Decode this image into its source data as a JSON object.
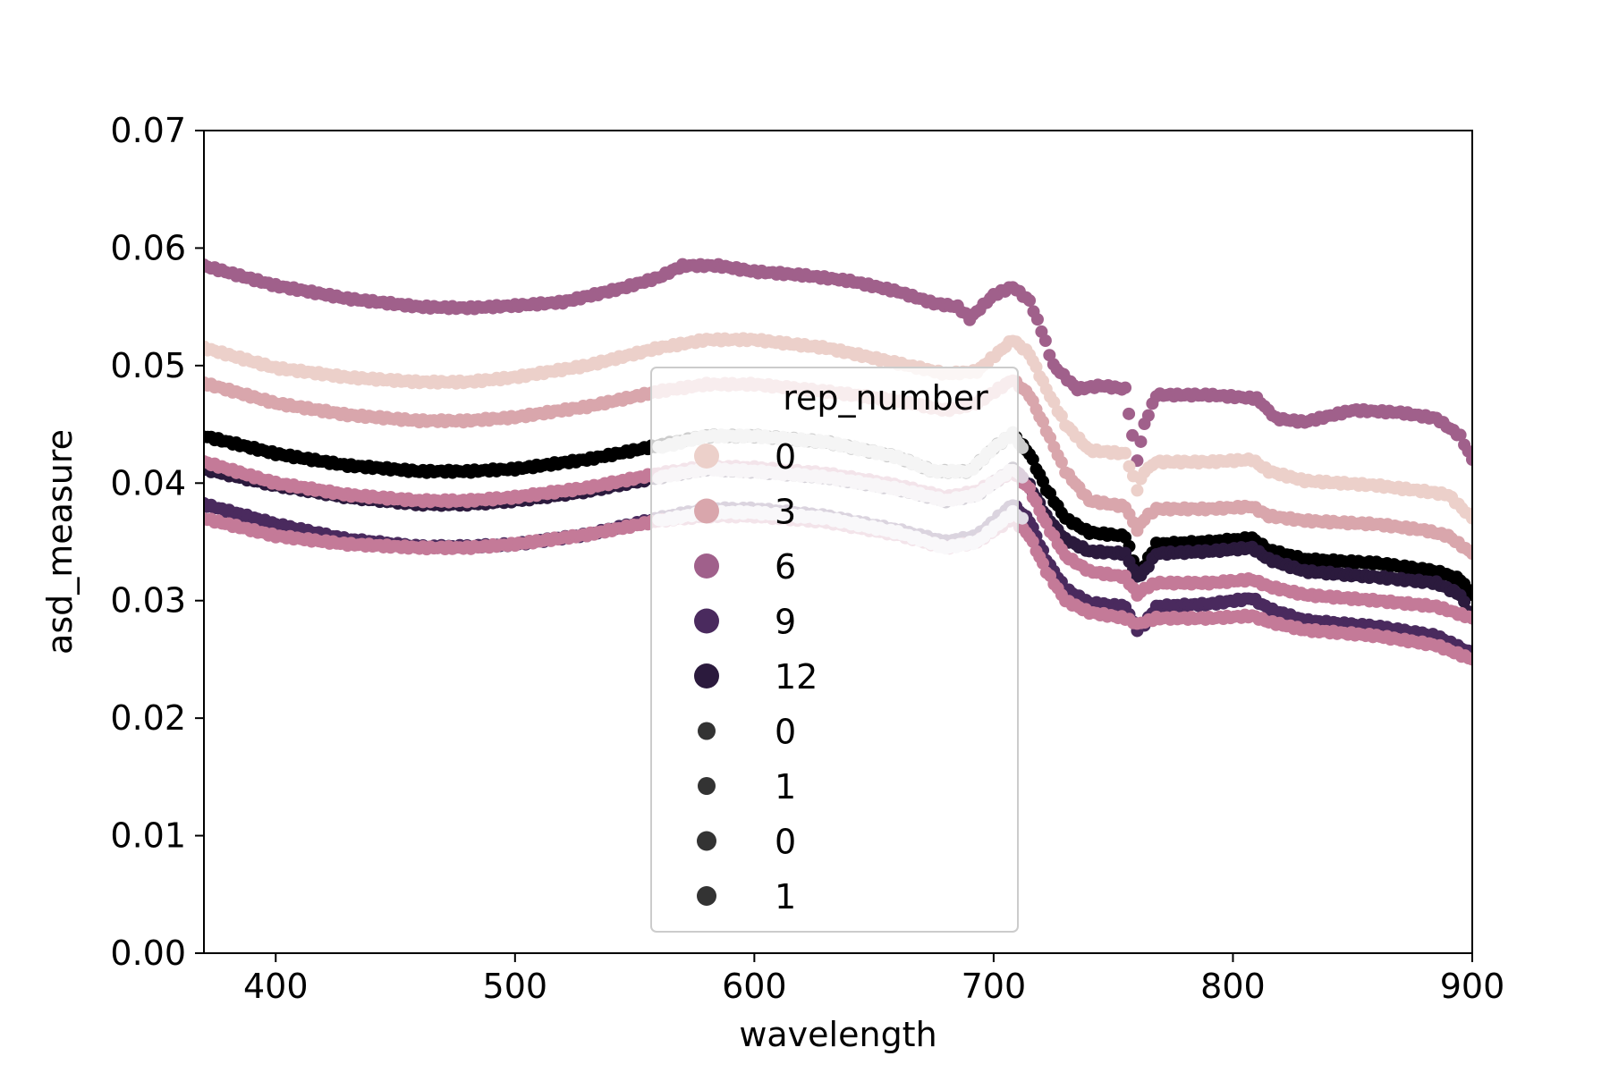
{
  "chart_data": {
    "type": "scatter",
    "xlabel": "wavelength",
    "ylabel": "asd_measure",
    "xlim": [
      370,
      900
    ],
    "ylim": [
      0,
      0.07
    ],
    "xticks": [
      400,
      500,
      600,
      700,
      800,
      900
    ],
    "xtick_labels": [
      "400",
      "500",
      "600",
      "700",
      "800",
      "900"
    ],
    "yticks": [
      0,
      0.01,
      0.02,
      0.03,
      0.04,
      0.05,
      0.06,
      0.07
    ],
    "ytick_labels": [
      "0.00",
      "0.01",
      "0.02",
      "0.03",
      "0.04",
      "0.05",
      "0.06",
      "0.07"
    ],
    "grid": false,
    "legend": {
      "placement": "center",
      "title": "rep_number",
      "entries": [
        {
          "label": "0",
          "color": "#ecd0ca",
          "kind": "hue"
        },
        {
          "label": "3",
          "color": "#d9a6ac",
          "kind": "hue"
        },
        {
          "label": "6",
          "color": "#a0608b",
          "kind": "hue"
        },
        {
          "label": "9",
          "color": "#4a2a5e",
          "kind": "hue"
        },
        {
          "label": "12",
          "color": "#2b1a3d",
          "kind": "hue"
        },
        {
          "label": "0",
          "color": "#333333",
          "kind": "size"
        },
        {
          "label": "1",
          "color": "#333333",
          "kind": "size"
        },
        {
          "label": "0",
          "color": "#333333",
          "kind": "size"
        },
        {
          "label": "1",
          "color": "#333333",
          "kind": "size"
        }
      ]
    },
    "series": [
      {
        "color": "#a0608b",
        "points": [
          [
            370,
            0.0585
          ],
          [
            400,
            0.0568
          ],
          [
            430,
            0.0557
          ],
          [
            460,
            0.055
          ],
          [
            480,
            0.0549
          ],
          [
            500,
            0.0551
          ],
          [
            520,
            0.0554
          ],
          [
            545,
            0.0566
          ],
          [
            560,
            0.0575
          ],
          [
            570,
            0.0585
          ],
          [
            585,
            0.0585
          ],
          [
            600,
            0.058
          ],
          [
            620,
            0.0577
          ],
          [
            640,
            0.0572
          ],
          [
            660,
            0.0563
          ],
          [
            675,
            0.0553
          ],
          [
            685,
            0.055
          ],
          [
            690,
            0.054
          ],
          [
            700,
            0.056
          ],
          [
            708,
            0.0567
          ],
          [
            715,
            0.0555
          ],
          [
            720,
            0.053
          ],
          [
            725,
            0.05
          ],
          [
            735,
            0.048
          ],
          [
            745,
            0.0483
          ],
          [
            755,
            0.048
          ],
          [
            758,
            0.044
          ],
          [
            760,
            0.042
          ],
          [
            763,
            0.045
          ],
          [
            768,
            0.0475
          ],
          [
            790,
            0.0475
          ],
          [
            810,
            0.0472
          ],
          [
            818,
            0.0455
          ],
          [
            830,
            0.0452
          ],
          [
            850,
            0.0462
          ],
          [
            870,
            0.046
          ],
          [
            885,
            0.0455
          ],
          [
            895,
            0.044
          ],
          [
            900,
            0.042
          ]
        ]
      },
      {
        "color": "#ecd0ca",
        "points": [
          [
            370,
            0.0515
          ],
          [
            400,
            0.0498
          ],
          [
            430,
            0.049
          ],
          [
            460,
            0.0486
          ],
          [
            480,
            0.0486
          ],
          [
            500,
            0.049
          ],
          [
            530,
            0.05
          ],
          [
            560,
            0.0515
          ],
          [
            580,
            0.0522
          ],
          [
            600,
            0.0522
          ],
          [
            630,
            0.0515
          ],
          [
            660,
            0.0502
          ],
          [
            680,
            0.0493
          ],
          [
            693,
            0.0495
          ],
          [
            708,
            0.0522
          ],
          [
            715,
            0.051
          ],
          [
            722,
            0.048
          ],
          [
            730,
            0.045
          ],
          [
            740,
            0.0428
          ],
          [
            755,
            0.0425
          ],
          [
            760,
            0.0395
          ],
          [
            763,
            0.041
          ],
          [
            768,
            0.0418
          ],
          [
            790,
            0.0418
          ],
          [
            808,
            0.042
          ],
          [
            815,
            0.041
          ],
          [
            830,
            0.0402
          ],
          [
            860,
            0.0398
          ],
          [
            880,
            0.0393
          ],
          [
            890,
            0.039
          ],
          [
            900,
            0.037
          ]
        ]
      },
      {
        "color": "#d9a6ac",
        "points": [
          [
            370,
            0.0485
          ],
          [
            400,
            0.0468
          ],
          [
            430,
            0.0458
          ],
          [
            460,
            0.0453
          ],
          [
            480,
            0.0453
          ],
          [
            500,
            0.0456
          ],
          [
            530,
            0.0465
          ],
          [
            560,
            0.0478
          ],
          [
            580,
            0.0484
          ],
          [
            600,
            0.0484
          ],
          [
            630,
            0.0478
          ],
          [
            660,
            0.047
          ],
          [
            680,
            0.0462
          ],
          [
            693,
            0.0468
          ],
          [
            708,
            0.0488
          ],
          [
            715,
            0.0475
          ],
          [
            722,
            0.0445
          ],
          [
            730,
            0.041
          ],
          [
            740,
            0.0385
          ],
          [
            755,
            0.038
          ],
          [
            760,
            0.036
          ],
          [
            763,
            0.037
          ],
          [
            768,
            0.0378
          ],
          [
            790,
            0.0378
          ],
          [
            808,
            0.038
          ],
          [
            815,
            0.0372
          ],
          [
            830,
            0.0368
          ],
          [
            860,
            0.0365
          ],
          [
            880,
            0.036
          ],
          [
            890,
            0.0355
          ],
          [
            900,
            0.034
          ]
        ]
      },
      {
        "color": "#000000",
        "points": [
          [
            370,
            0.044
          ],
          [
            400,
            0.0425
          ],
          [
            430,
            0.0415
          ],
          [
            460,
            0.041
          ],
          [
            480,
            0.041
          ],
          [
            500,
            0.0412
          ],
          [
            530,
            0.042
          ],
          [
            560,
            0.0432
          ],
          [
            580,
            0.044
          ],
          [
            600,
            0.044
          ],
          [
            630,
            0.0435
          ],
          [
            660,
            0.0422
          ],
          [
            675,
            0.041
          ],
          [
            690,
            0.041
          ],
          [
            700,
            0.043
          ],
          [
            708,
            0.0442
          ],
          [
            715,
            0.0425
          ],
          [
            722,
            0.0395
          ],
          [
            730,
            0.037
          ],
          [
            740,
            0.0358
          ],
          [
            755,
            0.0355
          ],
          [
            760,
            0.0325
          ],
          [
            763,
            0.033
          ],
          [
            768,
            0.0348
          ],
          [
            790,
            0.035
          ],
          [
            808,
            0.0353
          ],
          [
            815,
            0.0343
          ],
          [
            830,
            0.0335
          ],
          [
            860,
            0.0332
          ],
          [
            885,
            0.0325
          ],
          [
            895,
            0.0318
          ],
          [
            900,
            0.0305
          ]
        ]
      },
      {
        "color": "#cccccc",
        "points": [
          [
            560,
            0.043
          ],
          [
            580,
            0.044
          ],
          [
            600,
            0.044
          ],
          [
            630,
            0.0435
          ],
          [
            660,
            0.0422
          ],
          [
            675,
            0.041
          ],
          [
            690,
            0.041
          ],
          [
            700,
            0.043
          ],
          [
            708,
            0.0442
          ],
          [
            712,
            0.043
          ]
        ]
      },
      {
        "color": "#2b1a3d",
        "points": [
          [
            370,
            0.0412
          ],
          [
            400,
            0.0398
          ],
          [
            430,
            0.0388
          ],
          [
            460,
            0.0382
          ],
          [
            480,
            0.0382
          ],
          [
            500,
            0.0385
          ],
          [
            530,
            0.0393
          ],
          [
            560,
            0.0405
          ],
          [
            580,
            0.0412
          ],
          [
            600,
            0.041
          ],
          [
            630,
            0.0405
          ],
          [
            660,
            0.0395
          ],
          [
            680,
            0.0385
          ],
          [
            693,
            0.039
          ],
          [
            708,
            0.0412
          ],
          [
            715,
            0.0398
          ],
          [
            722,
            0.0372
          ],
          [
            730,
            0.0352
          ],
          [
            740,
            0.0342
          ],
          [
            755,
            0.034
          ],
          [
            760,
            0.032
          ],
          [
            763,
            0.0325
          ],
          [
            768,
            0.034
          ],
          [
            790,
            0.0342
          ],
          [
            808,
            0.0345
          ],
          [
            815,
            0.0335
          ],
          [
            830,
            0.0325
          ],
          [
            860,
            0.032
          ],
          [
            885,
            0.0315
          ],
          [
            895,
            0.0305
          ],
          [
            900,
            0.0285
          ]
        ]
      },
      {
        "color": "#c47a98",
        "points": [
          [
            370,
            0.0418
          ],
          [
            400,
            0.04
          ],
          [
            430,
            0.039
          ],
          [
            460,
            0.0385
          ],
          [
            480,
            0.0385
          ],
          [
            500,
            0.0388
          ],
          [
            530,
            0.0396
          ],
          [
            560,
            0.0408
          ],
          [
            580,
            0.0414
          ],
          [
            600,
            0.0413
          ],
          [
            630,
            0.0408
          ],
          [
            660,
            0.0398
          ],
          [
            680,
            0.0388
          ],
          [
            693,
            0.0393
          ],
          [
            708,
            0.041
          ],
          [
            715,
            0.0395
          ],
          [
            722,
            0.0365
          ],
          [
            730,
            0.0338
          ],
          [
            740,
            0.0325
          ],
          [
            755,
            0.032
          ],
          [
            760,
            0.0305
          ],
          [
            763,
            0.031
          ],
          [
            768,
            0.0315
          ],
          [
            790,
            0.0315
          ],
          [
            808,
            0.0318
          ],
          [
            815,
            0.0312
          ],
          [
            830,
            0.0305
          ],
          [
            860,
            0.03
          ],
          [
            885,
            0.0295
          ],
          [
            900,
            0.0285
          ]
        ]
      },
      {
        "color": "#ddd0dd",
        "points": [
          [
            560,
            0.0405
          ],
          [
            580,
            0.0412
          ],
          [
            600,
            0.041
          ],
          [
            630,
            0.0405
          ],
          [
            660,
            0.0395
          ],
          [
            680,
            0.0385
          ],
          [
            693,
            0.039
          ],
          [
            708,
            0.0412
          ],
          [
            712,
            0.0405
          ]
        ]
      },
      {
        "color": "#4a2a5e",
        "points": [
          [
            370,
            0.0382
          ],
          [
            400,
            0.0365
          ],
          [
            430,
            0.0352
          ],
          [
            460,
            0.0346
          ],
          [
            480,
            0.0346
          ],
          [
            500,
            0.0348
          ],
          [
            530,
            0.0356
          ],
          [
            560,
            0.037
          ],
          [
            580,
            0.0378
          ],
          [
            600,
            0.0378
          ],
          [
            630,
            0.0372
          ],
          [
            660,
            0.036
          ],
          [
            680,
            0.035
          ],
          [
            693,
            0.0355
          ],
          [
            708,
            0.0382
          ],
          [
            715,
            0.0368
          ],
          [
            722,
            0.0335
          ],
          [
            730,
            0.031
          ],
          [
            740,
            0.0298
          ],
          [
            755,
            0.0295
          ],
          [
            760,
            0.0275
          ],
          [
            763,
            0.028
          ],
          [
            768,
            0.0295
          ],
          [
            790,
            0.0297
          ],
          [
            808,
            0.0302
          ],
          [
            815,
            0.0293
          ],
          [
            830,
            0.0283
          ],
          [
            860,
            0.0278
          ],
          [
            885,
            0.027
          ],
          [
            900,
            0.0255
          ]
        ]
      },
      {
        "color": "#c47a98",
        "points": [
          [
            370,
            0.037
          ],
          [
            400,
            0.0355
          ],
          [
            430,
            0.0348
          ],
          [
            460,
            0.0345
          ],
          [
            480,
            0.0345
          ],
          [
            500,
            0.0348
          ],
          [
            530,
            0.0356
          ],
          [
            560,
            0.0368
          ],
          [
            580,
            0.0372
          ],
          [
            600,
            0.0372
          ],
          [
            630,
            0.0367
          ],
          [
            660,
            0.0356
          ],
          [
            680,
            0.0345
          ],
          [
            693,
            0.035
          ],
          [
            708,
            0.037
          ],
          [
            715,
            0.0355
          ],
          [
            722,
            0.0325
          ],
          [
            730,
            0.03
          ],
          [
            740,
            0.029
          ],
          [
            755,
            0.0285
          ],
          [
            760,
            0.028
          ],
          [
            768,
            0.0285
          ],
          [
            790,
            0.0285
          ],
          [
            808,
            0.0287
          ],
          [
            815,
            0.0282
          ],
          [
            830,
            0.0275
          ],
          [
            860,
            0.027
          ],
          [
            885,
            0.0262
          ],
          [
            900,
            0.025
          ]
        ]
      },
      {
        "color": "#e2dbe6",
        "points": [
          [
            560,
            0.0368
          ],
          [
            580,
            0.0375
          ],
          [
            600,
            0.0375
          ],
          [
            630,
            0.037
          ],
          [
            660,
            0.0358
          ],
          [
            680,
            0.0345
          ],
          [
            693,
            0.035
          ],
          [
            708,
            0.0375
          ],
          [
            712,
            0.037
          ]
        ]
      }
    ]
  }
}
